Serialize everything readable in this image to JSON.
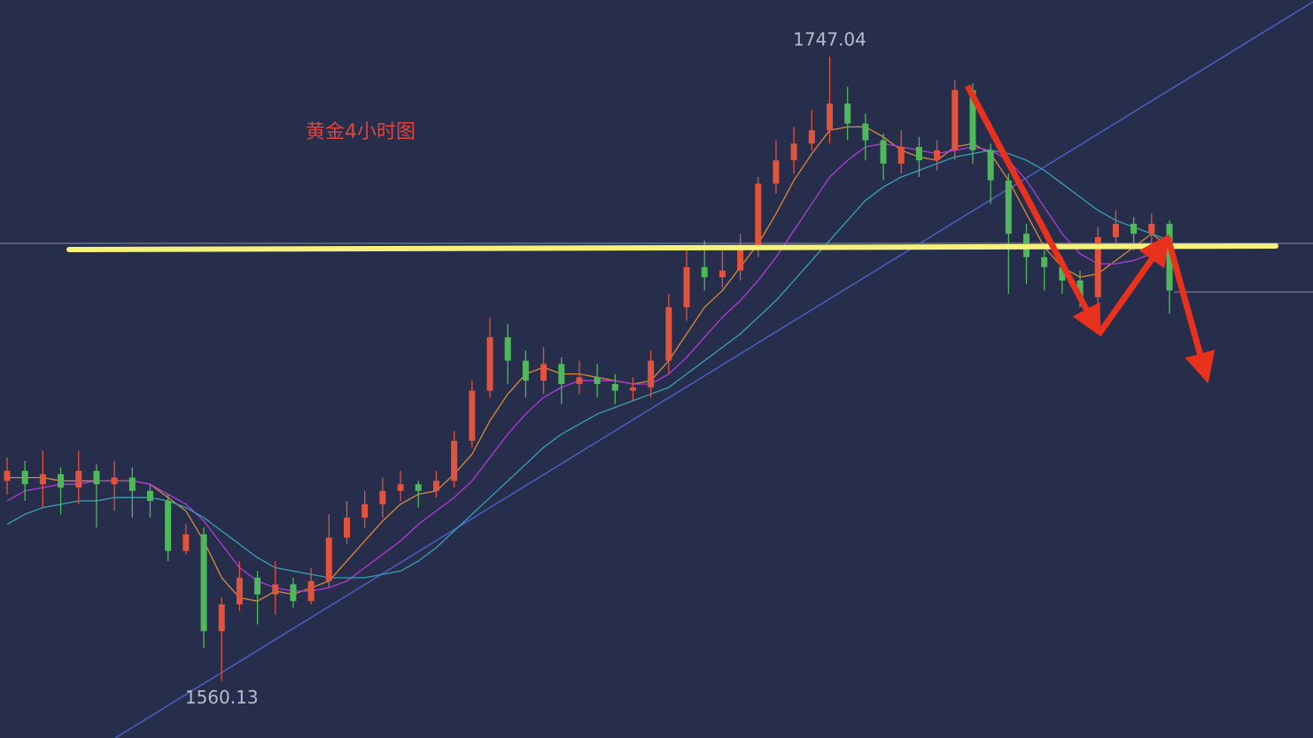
{
  "chart_data": {
    "type": "candlestick",
    "title": "黄金4小时图",
    "up_color": "#e0533c",
    "down_color": "#4fb85a",
    "ylim": [
      1543,
      1764
    ],
    "open": [
      1620,
      1623,
      1619,
      1622,
      1618,
      1623,
      1619,
      1621,
      1617,
      1614,
      1599,
      1604,
      1575,
      1583,
      1591,
      1586,
      1589,
      1584,
      1590,
      1603,
      1609,
      1613,
      1617,
      1619,
      1617,
      1620,
      1632,
      1647,
      1663,
      1656,
      1650,
      1655,
      1649,
      1651,
      1649,
      1647,
      1648,
      1656,
      1672,
      1684,
      1681,
      1683,
      1690,
      1709,
      1716,
      1721,
      1725,
      1733,
      1727,
      1722,
      1715,
      1720,
      1716,
      1719,
      1737,
      1719,
      1710,
      1694,
      1687,
      1684,
      1680,
      1675,
      1693,
      1697,
      1694,
      1697
    ],
    "close": [
      1623,
      1619,
      1622,
      1618,
      1623,
      1619,
      1621,
      1617,
      1614,
      1599,
      1604,
      1575,
      1583,
      1591,
      1586,
      1589,
      1584,
      1590,
      1603,
      1609,
      1613,
      1617,
      1619,
      1617,
      1620,
      1632,
      1647,
      1663,
      1656,
      1650,
      1655,
      1649,
      1651,
      1649,
      1647,
      1648,
      1656,
      1672,
      1684,
      1681,
      1683,
      1690,
      1709,
      1716,
      1721,
      1725,
      1733,
      1727,
      1722,
      1715,
      1720,
      1716,
      1719,
      1737,
      1719,
      1710,
      1694,
      1687,
      1684,
      1680,
      1675,
      1693,
      1697,
      1694,
      1697,
      1677
    ],
    "high": [
      1627,
      1626,
      1629,
      1624,
      1629,
      1625,
      1626,
      1624,
      1619,
      1616,
      1607,
      1606,
      1585,
      1596,
      1593,
      1596,
      1591,
      1594,
      1610,
      1614,
      1617,
      1621,
      1623,
      1620,
      1623,
      1635,
      1650,
      1669,
      1667,
      1659,
      1660,
      1657,
      1656,
      1655,
      1652,
      1651,
      1659,
      1676,
      1689,
      1692,
      1689,
      1694,
      1711,
      1722,
      1726,
      1731,
      1747.04,
      1738,
      1730,
      1724,
      1725,
      1723,
      1722,
      1740,
      1739,
      1721,
      1712,
      1697,
      1689,
      1687,
      1683,
      1696,
      1701,
      1699,
      1700,
      1698
    ],
    "low": [
      1616,
      1614,
      1612,
      1610,
      1613,
      1606,
      1611,
      1609,
      1609,
      1596,
      1598,
      1570,
      1560.13,
      1581,
      1577,
      1580,
      1582,
      1583,
      1588,
      1601,
      1606,
      1609,
      1614,
      1612,
      1615,
      1618,
      1630,
      1645,
      1649,
      1645,
      1646,
      1643,
      1646,
      1645,
      1643,
      1644,
      1645,
      1652,
      1668,
      1677,
      1678,
      1680,
      1687,
      1706,
      1712,
      1719,
      1721,
      1722,
      1716,
      1710,
      1712,
      1711,
      1713,
      1716,
      1715,
      1703,
      1676,
      1679,
      1677,
      1676,
      1672,
      1673,
      1690,
      1689,
      1690,
      1670
    ],
    "series": [
      {
        "color": "#d98a3a",
        "values": [
          1621,
          1621,
          1621,
          1620,
          1620,
          1620,
          1620,
          1620,
          1619,
          1615,
          1611,
          1602,
          1591,
          1585,
          1584,
          1587,
          1586,
          1588,
          1590,
          1596,
          1602,
          1608,
          1613,
          1616,
          1617,
          1622,
          1628,
          1638,
          1646,
          1652,
          1654,
          1652,
          1652,
          1651,
          1650,
          1649,
          1650,
          1656,
          1664,
          1672,
          1677,
          1684,
          1691,
          1700,
          1710,
          1718,
          1725,
          1726,
          1726,
          1723,
          1719,
          1717,
          1716,
          1720,
          1721,
          1718,
          1710,
          1700,
          1690,
          1684,
          1681,
          1682,
          1686,
          1690,
          1694,
          1690
        ]
      },
      {
        "color": "#b03bd6",
        "values": [
          1614,
          1617,
          1618,
          1619,
          1619,
          1620,
          1620,
          1620,
          1619,
          1616,
          1613,
          1608,
          1601,
          1594,
          1590,
          1588,
          1587,
          1587,
          1588,
          1590,
          1594,
          1598,
          1602,
          1607,
          1611,
          1615,
          1620,
          1627,
          1634,
          1640,
          1645,
          1648,
          1650,
          1650,
          1650,
          1649,
          1649,
          1652,
          1657,
          1663,
          1669,
          1674,
          1680,
          1687,
          1695,
          1703,
          1711,
          1716,
          1720,
          1721,
          1720,
          1719,
          1718,
          1719,
          1720,
          1719,
          1716,
          1710,
          1702,
          1694,
          1688,
          1685,
          1685,
          1686,
          1688,
          1689
        ]
      },
      {
        "color": "#3a9fb5",
        "values": [
          1607,
          1610,
          1612,
          1613,
          1614,
          1614,
          1615,
          1615,
          1615,
          1614,
          1612,
          1609,
          1605,
          1601,
          1597,
          1594,
          1593,
          1592,
          1591,
          1591,
          1591,
          1592,
          1593,
          1596,
          1600,
          1605,
          1610,
          1615,
          1620,
          1625,
          1630,
          1634,
          1637,
          1640,
          1642,
          1644,
          1646,
          1648,
          1652,
          1656,
          1660,
          1664,
          1669,
          1674,
          1680,
          1686,
          1692,
          1698,
          1704,
          1708,
          1711,
          1713,
          1715,
          1717,
          1718,
          1719,
          1718,
          1716,
          1713,
          1709,
          1705,
          1701,
          1698,
          1696,
          1694,
          1692
        ]
      }
    ],
    "annotations": [
      1747.04,
      1560.13
    ]
  }
}
